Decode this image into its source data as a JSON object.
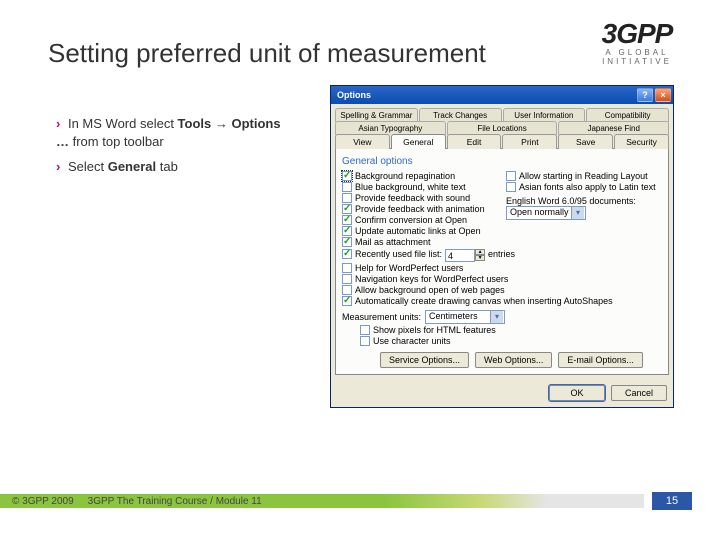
{
  "slide": {
    "title": "Setting preferred unit of measurement",
    "logo_main": "3GPP",
    "logo_sub": "A GLOBAL INITIATIVE",
    "bullets": [
      {
        "prefix_text": "In MS Word select ",
        "strong1": "Tools",
        "arrow": " → ",
        "strong2": "Options …",
        "suffix_text": " from top toolbar"
      },
      {
        "prefix_text": "Select ",
        "strong1": "General",
        "suffix_text": " tab"
      }
    ]
  },
  "dialog": {
    "title": "Options",
    "help_label": "?",
    "close_label": "×",
    "tabs_row1": [
      "Spelling & Grammar",
      "Track Changes",
      "User Information",
      "Compatibility"
    ],
    "tabs_row2": [
      "Asian Typography",
      "File Locations",
      "Japanese Find"
    ],
    "tabs_row3": [
      "View",
      "General",
      "Edit",
      "Print",
      "Save",
      "Security"
    ],
    "active_tab": "General",
    "group_label": "General options",
    "left_options": [
      {
        "label": "Background repagination",
        "checked": true,
        "highlighted": true
      },
      {
        "label": "Blue background, white text",
        "checked": false
      },
      {
        "label": "Provide feedback with sound",
        "checked": false
      },
      {
        "label": "Provide feedback with animation",
        "checked": true
      },
      {
        "label": "Confirm conversion at Open",
        "checked": true
      },
      {
        "label": "Update automatic links at Open",
        "checked": true
      },
      {
        "label": "Mail as attachment",
        "checked": true
      }
    ],
    "right_options": [
      {
        "label": "Allow starting in Reading Layout",
        "checked": false
      },
      {
        "label": "Asian fonts also apply to Latin text",
        "checked": false
      }
    ],
    "doc_mode_label": "English Word 6.0/95 documents:",
    "doc_mode_value": "Open normally",
    "recent_files": {
      "checked": true,
      "label_pre": "Recently used file list:",
      "value": "4",
      "label_post": "entries"
    },
    "wp_users": {
      "checked": false,
      "label": "Help for WordPerfect users"
    },
    "wp_nav": {
      "checked": false,
      "label": "Navigation keys for WordPerfect users"
    },
    "bg_open": {
      "checked": false,
      "label": "Allow background open of web pages"
    },
    "auto_canvas": {
      "checked": true,
      "label": "Automatically create drawing canvas when inserting AutoShapes"
    },
    "measurement_label": "Measurement units:",
    "measurement_value": "Centimeters",
    "sub_options": [
      {
        "label": "Show pixels for HTML features",
        "checked": false
      },
      {
        "label": "Use character units",
        "checked": false
      }
    ],
    "buttons_row": [
      "Service Options...",
      "Web Options...",
      "E-mail Options..."
    ],
    "ok_label": "OK",
    "cancel_label": "Cancel"
  },
  "footer": {
    "copyright": "© 3GPP 2009",
    "course": "3GPP The Training Course / Module 11",
    "page": "15"
  }
}
